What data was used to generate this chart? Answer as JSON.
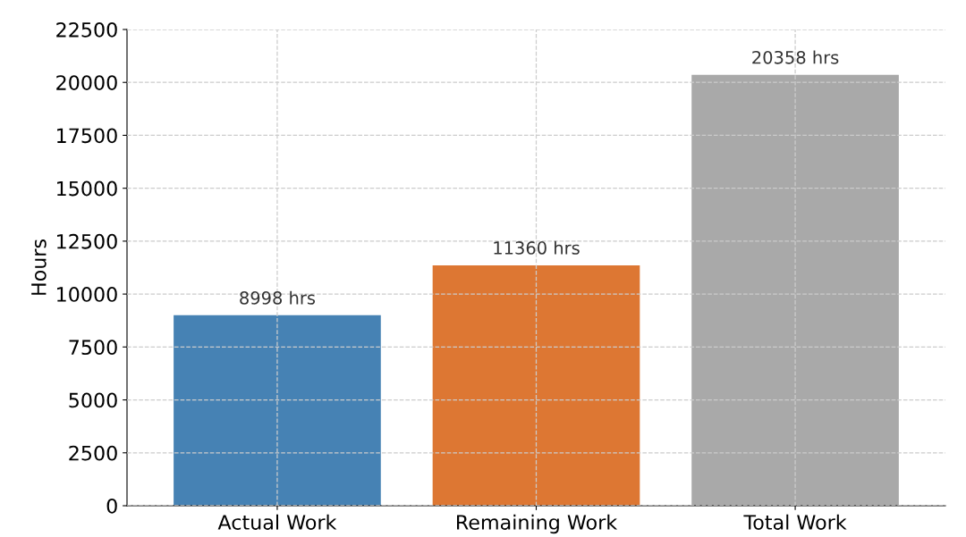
{
  "chart_data": {
    "type": "bar",
    "ylabel": "Hours",
    "categories": [
      "Actual Work",
      "Remaining Work",
      "Total Work"
    ],
    "values": [
      8998,
      11360,
      20358
    ],
    "colors": [
      "#4682b4",
      "#dd7733",
      "#a9a9a9"
    ],
    "value_labels": [
      "8998 hrs",
      "11360 hrs",
      "20358 hrs"
    ],
    "ylim": [
      0,
      22500
    ],
    "yticks": [
      0,
      2500,
      5000,
      7500,
      10000,
      12500,
      15000,
      17500,
      20000,
      22500
    ],
    "grid": true
  }
}
